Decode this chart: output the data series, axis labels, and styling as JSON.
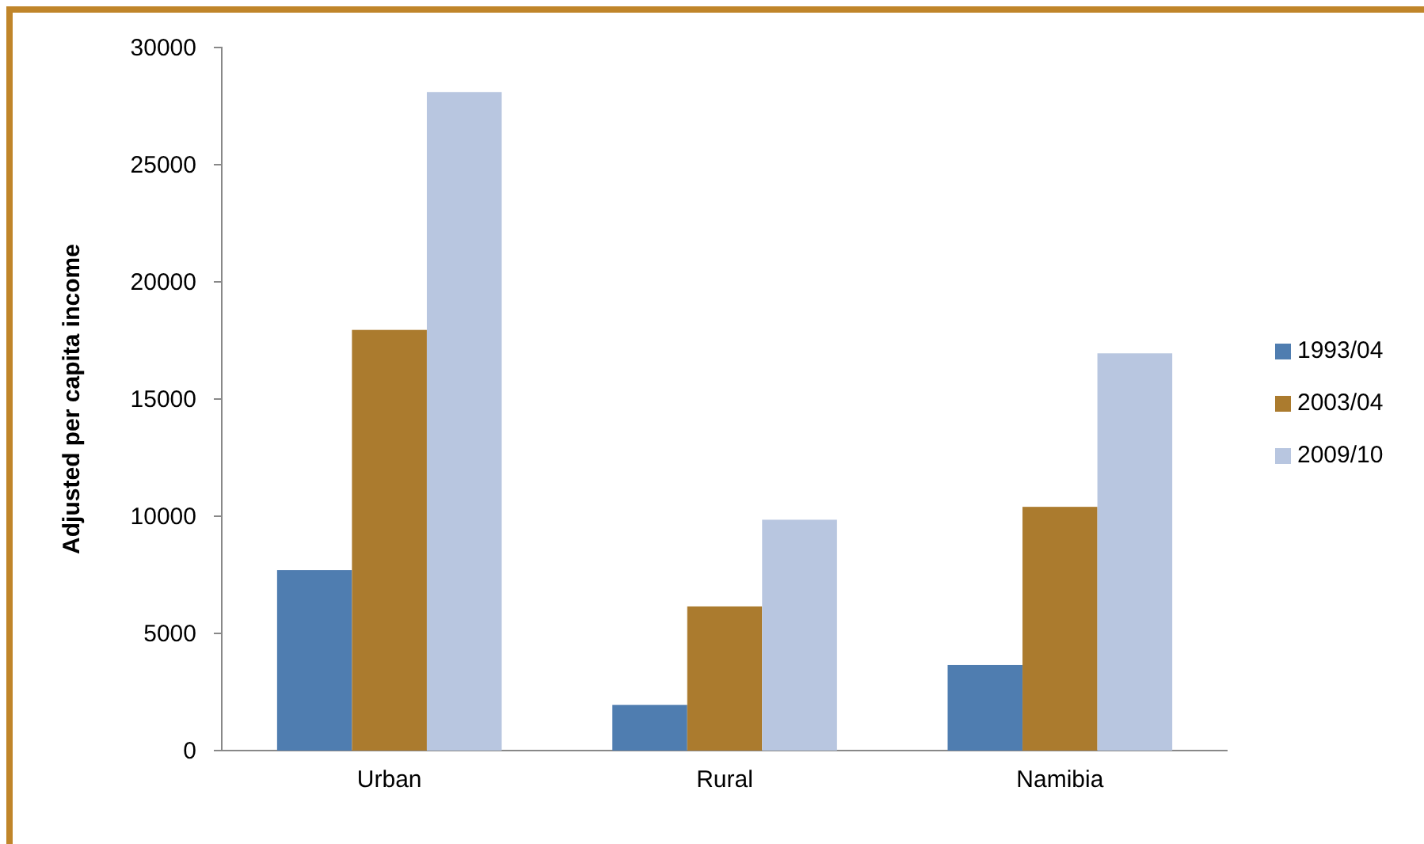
{
  "chart_data": {
    "type": "bar",
    "ylabel": "Adjusted per capita income",
    "categories": [
      "Urban",
      "Rural",
      "Namibia"
    ],
    "series": [
      {
        "name": "1993/04",
        "color": "#4f7db0",
        "values": [
          7700,
          1950,
          3650
        ]
      },
      {
        "name": "2003/04",
        "color": "#ab7b2e",
        "values": [
          17950,
          6150,
          10400
        ]
      },
      {
        "name": "2009/10",
        "color": "#b8c6e0",
        "values": [
          28100,
          9850,
          16950
        ]
      }
    ],
    "ylim": [
      0,
      30000
    ],
    "yticks": [
      0,
      5000,
      10000,
      15000,
      20000,
      25000,
      30000
    ],
    "grid": false,
    "legend": "right"
  }
}
